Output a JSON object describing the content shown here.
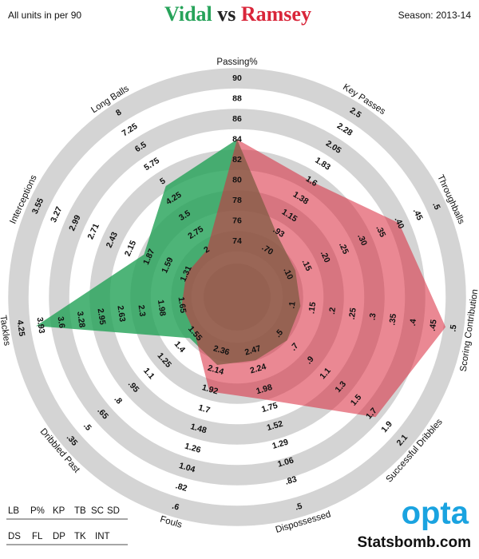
{
  "chart_data": {
    "type": "radar",
    "note_left": "All units in per 90",
    "season": "Season: 2013-14",
    "title_separator": "vs",
    "axes": [
      {
        "name": "Passing%",
        "ticks": [
          74,
          76,
          78,
          80,
          82,
          84,
          86,
          88,
          90
        ]
      },
      {
        "name": "Key Passes",
        "ticks": [
          {
            "value": 0.7,
            "label": ".70"
          },
          {
            "value": 0.93,
            "label": ".93"
          },
          1.15,
          1.38,
          1.6,
          1.83,
          2.05,
          2.28,
          2.5
        ]
      },
      {
        "name": "Throughballs",
        "ticks": [
          {
            "value": 0.1,
            "label": ".10"
          },
          {
            "value": 0.15,
            "label": ".15"
          },
          {
            "value": 0.2,
            "label": ".20"
          },
          {
            "value": 0.25,
            "label": ".25"
          },
          {
            "value": 0.3,
            "label": ".30"
          },
          {
            "value": 0.35,
            "label": ".35"
          },
          {
            "value": 0.4,
            "label": ".40"
          },
          {
            "value": 0.45,
            "label": ".45"
          },
          {
            "value": 0.5,
            "label": ".5"
          }
        ]
      },
      {
        "name": "Scoring Contribution",
        "ticks": [
          {
            "value": 0.1,
            "label": ".1"
          },
          {
            "value": 0.15,
            "label": ".15"
          },
          {
            "value": 0.2,
            "label": ".2"
          },
          {
            "value": 0.25,
            "label": ".25"
          },
          {
            "value": 0.3,
            "label": ".3"
          },
          {
            "value": 0.35,
            "label": ".35"
          },
          {
            "value": 0.4,
            "label": ".4"
          },
          {
            "value": 0.45,
            "label": ".45"
          },
          {
            "value": 0.5,
            "label": ".5"
          }
        ]
      },
      {
        "name": "Successful Dribbles",
        "ticks": [
          {
            "value": 0.5,
            "label": ".5"
          },
          {
            "value": 0.7,
            "label": ".7"
          },
          {
            "value": 0.9,
            "label": ".9"
          },
          1.1,
          1.3,
          1.5,
          1.7,
          1.9,
          2.1
        ]
      },
      {
        "name": "Dispossessed",
        "ticks": [
          2.47,
          2.24,
          1.98,
          1.75,
          1.52,
          1.29,
          1.06,
          {
            "value": 0.83,
            "label": ".83"
          },
          {
            "value": 0.5,
            "label": ".5"
          }
        ]
      },
      {
        "name": "Fouls",
        "ticks": [
          2.36,
          2.14,
          1.92,
          1.7,
          1.48,
          1.26,
          1.04,
          {
            "value": 0.82,
            "label": ".82"
          },
          {
            "value": 0.6,
            "label": ".6"
          }
        ]
      },
      {
        "name": "Dribbled Past",
        "ticks": [
          1.55,
          1.4,
          1.25,
          1.1,
          {
            "value": 0.95,
            "label": ".95"
          },
          {
            "value": 0.8,
            "label": ".8"
          },
          {
            "value": 0.65,
            "label": ".65"
          },
          {
            "value": 0.5,
            "label": ".5"
          },
          {
            "value": 0.35,
            "label": ".35"
          }
        ]
      },
      {
        "name": "Tackles",
        "ticks": [
          1.65,
          1.98,
          2.3,
          2.63,
          2.95,
          3.28,
          3.6,
          3.93,
          4.25
        ]
      },
      {
        "name": "Interceptions",
        "ticks": [
          1.31,
          1.59,
          1.87,
          2.15,
          2.43,
          2.71,
          2.99,
          3.27,
          3.55
        ]
      },
      {
        "name": "Long Balls",
        "ticks": [
          2,
          2.75,
          3.5,
          4.25,
          5,
          5.75,
          6.5,
          7.25,
          8
        ]
      }
    ],
    "series": [
      {
        "name": "Vidal",
        "color": "#27a35a",
        "values": [
          84,
          0.9,
          0.12,
          0.12,
          0.6,
          2.35,
          2.2,
          1.5,
          4.0,
          1.95,
          4.8
        ]
      },
      {
        "name": "Ramsey",
        "color": "#d9263a",
        "values": [
          84,
          1.6,
          0.4,
          0.48,
          1.75,
          1.85,
          1.9,
          1.55,
          1.65,
          1.31,
          2
        ]
      }
    ],
    "abbreviations": [
      [
        "LB",
        "P%",
        "KP",
        "TB",
        "SC",
        "SD"
      ],
      [
        "DS",
        "FL",
        "DP",
        "TK",
        "INT"
      ]
    ],
    "brand": "opta",
    "site": "Statsbomb.com"
  }
}
